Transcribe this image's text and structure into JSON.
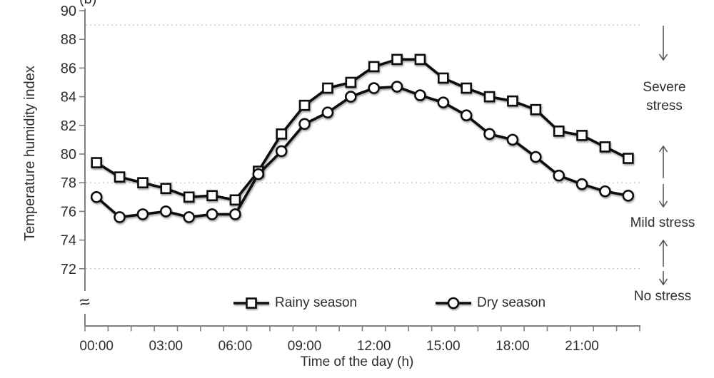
{
  "figure_label": "(b)",
  "chart_data": {
    "type": "line",
    "title": "",
    "xlabel": "Time of the day (h)",
    "ylabel": "Temperature humidity index",
    "x_categories": [
      "00:00",
      "01:00",
      "02:00",
      "03:00",
      "04:00",
      "05:00",
      "06:00",
      "07:00",
      "08:00",
      "09:00",
      "10:00",
      "11:00",
      "12:00",
      "13:00",
      "14:00",
      "15:00",
      "16:00",
      "17:00",
      "18:00",
      "19:00",
      "20:00",
      "21:00",
      "22:00",
      "23:00"
    ],
    "x_tick_label_every": 3,
    "y_ticks": [
      72,
      74,
      76,
      78,
      80,
      82,
      84,
      86,
      88,
      90
    ],
    "ylim": [
      72,
      90
    ],
    "y_axis_break": true,
    "dashed_reference_lines": [
      89,
      78,
      72
    ],
    "grid": "horizontal-dashed-reference-lines-only",
    "legend_position": "bottom-inside",
    "series": [
      {
        "name": "Rainy season",
        "marker": "square",
        "values": [
          79.4,
          78.4,
          78.0,
          77.6,
          77.0,
          77.1,
          76.8,
          78.8,
          81.4,
          83.4,
          84.6,
          85.0,
          86.1,
          86.6,
          86.6,
          85.3,
          84.6,
          84.0,
          83.7,
          83.1,
          81.6,
          81.3,
          80.5,
          79.7
        ]
      },
      {
        "name": "Dry season",
        "marker": "circle",
        "values": [
          77.0,
          75.6,
          75.8,
          76.0,
          75.6,
          75.8,
          75.8,
          78.6,
          80.2,
          82.1,
          82.9,
          84.0,
          84.6,
          84.7,
          84.1,
          83.6,
          82.7,
          81.4,
          81.0,
          79.8,
          78.5,
          77.9,
          77.4,
          77.1
        ]
      }
    ]
  },
  "annotations": {
    "severe_stress": "Severe stress",
    "mild_stress": "Mild stress",
    "no_stress": "No stress"
  },
  "colors": {
    "series_line": "#0d0d0d",
    "marker_fill": "#ffffff",
    "reference_line": "#b3b3b3",
    "axis": "#808080",
    "arrow": "#4d4d4d",
    "text": "#2d2d2d"
  }
}
